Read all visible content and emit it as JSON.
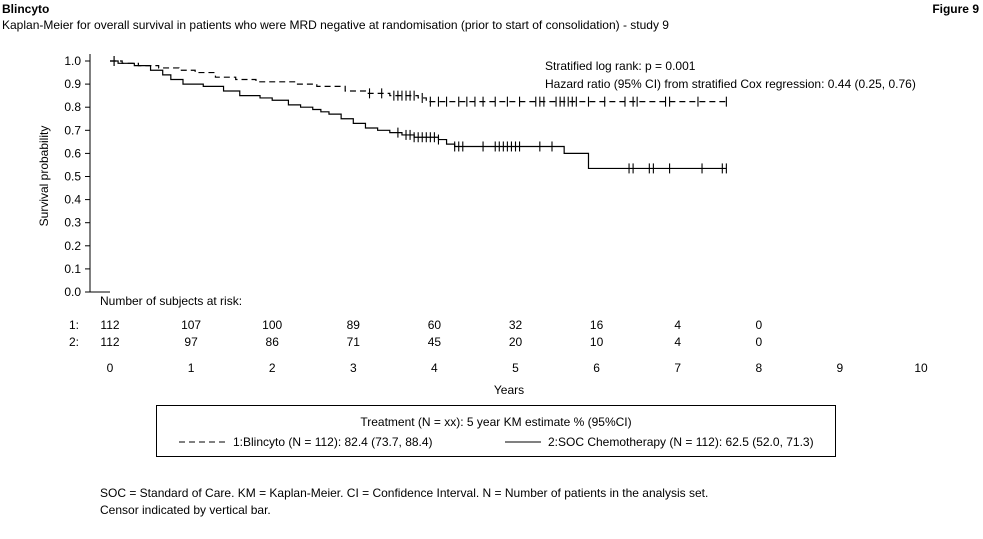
{
  "header": {
    "product": "Blincyto",
    "figure_label": "Figure 9",
    "subtitle": "Kaplan-Meier for overall survival in patients who were MRD negative at randomisation (prior to start of consolidation) - study 9"
  },
  "chart_data": {
    "type": "line",
    "subtype": "kaplan-meier",
    "xlabel": "Years",
    "ylabel": "Survival probability",
    "xlim": [
      0,
      10
    ],
    "ylim": [
      0,
      1
    ],
    "xticks": [
      0,
      1,
      2,
      3,
      4,
      5,
      6,
      7,
      8,
      9,
      10
    ],
    "yticks": [
      "0.0",
      "0.1",
      "0.2",
      "0.3",
      "0.4",
      "0.5",
      "0.6",
      "0.7",
      "0.8",
      "0.9",
      "1.0"
    ],
    "annotations": [
      "Stratified log rank: p = 0.001",
      "Hazard ratio (95% CI) from stratified Cox regression: 0.44 (0.25, 0.76)"
    ],
    "legend_title": "Treatment (N = xx): 5 year KM estimate % (95%CI)",
    "legend_placement": "bottom",
    "grid": false,
    "series": [
      {
        "name": "1:Blincyto (N = 112): 82.4 (73.7, 88.4)",
        "style": "dashed",
        "color": "#000000",
        "steps": [
          [
            0,
            1.0
          ],
          [
            0.15,
            0.99
          ],
          [
            0.35,
            0.98
          ],
          [
            0.6,
            0.97
          ],
          [
            0.85,
            0.96
          ],
          [
            1.05,
            0.95
          ],
          [
            1.3,
            0.93
          ],
          [
            1.55,
            0.92
          ],
          [
            1.8,
            0.91
          ],
          [
            2.3,
            0.9
          ],
          [
            2.55,
            0.89
          ],
          [
            2.9,
            0.87
          ],
          [
            3.15,
            0.86
          ],
          [
            3.45,
            0.85
          ],
          [
            3.8,
            0.84
          ],
          [
            3.9,
            0.824
          ]
        ],
        "end_x": 7.6,
        "censors": [
          0.05,
          3.2,
          3.35,
          3.5,
          3.55,
          3.6,
          3.65,
          3.7,
          3.75,
          3.85,
          3.95,
          4.05,
          4.15,
          4.3,
          4.4,
          4.5,
          4.6,
          4.75,
          4.9,
          5.05,
          5.25,
          5.3,
          5.35,
          5.5,
          5.55,
          5.6,
          5.65,
          5.7,
          5.75,
          5.9,
          6.1,
          6.35,
          6.45,
          6.5,
          6.85,
          6.9,
          7.25,
          7.6
        ]
      },
      {
        "name": "2:SOC Chemotherapy (N = 112): 62.5 (52.0, 71.3)",
        "style": "solid",
        "color": "#000000",
        "steps": [
          [
            0,
            1.0
          ],
          [
            0.1,
            0.99
          ],
          [
            0.3,
            0.98
          ],
          [
            0.5,
            0.96
          ],
          [
            0.65,
            0.94
          ],
          [
            0.75,
            0.92
          ],
          [
            0.9,
            0.9
          ],
          [
            1.15,
            0.89
          ],
          [
            1.4,
            0.87
          ],
          [
            1.6,
            0.85
          ],
          [
            1.85,
            0.84
          ],
          [
            2.0,
            0.83
          ],
          [
            2.2,
            0.81
          ],
          [
            2.35,
            0.8
          ],
          [
            2.5,
            0.79
          ],
          [
            2.6,
            0.78
          ],
          [
            2.7,
            0.77
          ],
          [
            2.85,
            0.75
          ],
          [
            3.0,
            0.73
          ],
          [
            3.15,
            0.71
          ],
          [
            3.3,
            0.7
          ],
          [
            3.45,
            0.69
          ],
          [
            3.6,
            0.68
          ],
          [
            3.75,
            0.67
          ],
          [
            4.05,
            0.66
          ],
          [
            4.15,
            0.64
          ],
          [
            4.25,
            0.63
          ],
          [
            5.6,
            0.6
          ],
          [
            5.9,
            0.535
          ]
        ],
        "end_x": 7.6,
        "censors": [
          0.05,
          3.55,
          3.65,
          3.7,
          3.75,
          3.8,
          3.85,
          3.9,
          3.95,
          4.0,
          4.05,
          4.25,
          4.3,
          4.35,
          4.6,
          4.75,
          4.8,
          4.85,
          4.9,
          4.95,
          5.0,
          5.05,
          5.3,
          5.45,
          6.4,
          6.45,
          6.65,
          6.7,
          6.9,
          7.3,
          7.55,
          7.6
        ]
      }
    ],
    "at_risk": {
      "title": "Number of subjects at risk:",
      "times": [
        0,
        1,
        2,
        3,
        4,
        5,
        6,
        7,
        8
      ],
      "rows": [
        {
          "label": "1:",
          "values": [
            112,
            107,
            100,
            89,
            60,
            32,
            16,
            4,
            0
          ]
        },
        {
          "label": "2:",
          "values": [
            112,
            97,
            86,
            71,
            45,
            20,
            10,
            4,
            0
          ]
        }
      ]
    }
  },
  "footnotes": [
    "SOC = Standard of Care.  KM = Kaplan-Meier.  CI = Confidence Interval.  N = Number of patients in the analysis set.",
    "Censor indicated by vertical bar."
  ]
}
